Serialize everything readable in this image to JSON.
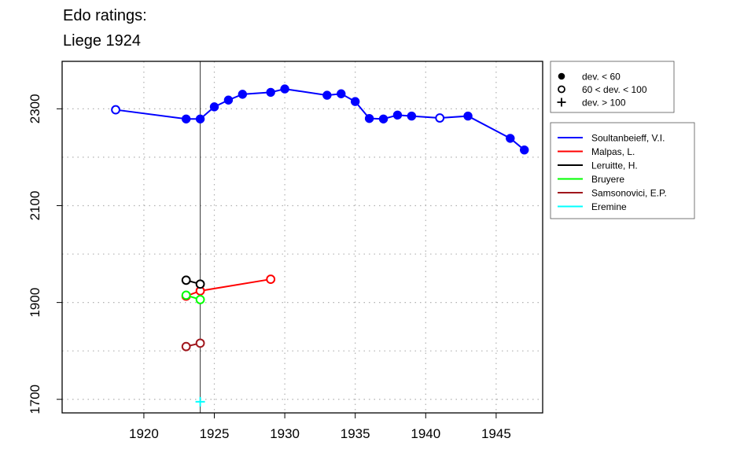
{
  "chart_data": {
    "type": "line",
    "title": "Edo ratings:",
    "subtitle": "Liege 1924",
    "xlabel": "",
    "ylabel": "",
    "xlim": [
      1914.2,
      1948.3
    ],
    "ylim": [
      1672,
      2398
    ],
    "x_ticks": [
      1920,
      1925,
      1930,
      1935,
      1940,
      1945
    ],
    "y_ticks": [
      1700,
      1900,
      2100,
      2300
    ],
    "x_grid": [
      1920,
      1925,
      1930,
      1935,
      1940,
      1945
    ],
    "y_grid": [
      1800,
      2000,
      2200,
      2400
    ],
    "grid": true,
    "marker_line_x": 1924,
    "dev_legend": [
      {
        "symbol": "filled-circle",
        "label": "dev. < 60"
      },
      {
        "symbol": "open-circle",
        "label": "60 < dev. < 100"
      },
      {
        "symbol": "plus",
        "label": "dev. > 100"
      }
    ],
    "legend_position": "right",
    "series": [
      {
        "name": "Soultanbeieff, V.I.",
        "color": "#0000ff",
        "points": [
          {
            "x": 1918,
            "y": 2298,
            "m": "open"
          },
          {
            "x": 1923,
            "y": 2279,
            "m": "filled"
          },
          {
            "x": 1924,
            "y": 2279,
            "m": "filled"
          },
          {
            "x": 1925,
            "y": 2304,
            "m": "filled"
          },
          {
            "x": 1926,
            "y": 2318,
            "m": "filled"
          },
          {
            "x": 1927,
            "y": 2330,
            "m": "filled"
          },
          {
            "x": 1929,
            "y": 2334,
            "m": "filled"
          },
          {
            "x": 1930,
            "y": 2341,
            "m": "filled"
          },
          {
            "x": 1933,
            "y": 2328,
            "m": "filled"
          },
          {
            "x": 1934,
            "y": 2331,
            "m": "filled"
          },
          {
            "x": 1935,
            "y": 2315,
            "m": "filled"
          },
          {
            "x": 1936,
            "y": 2280,
            "m": "filled"
          },
          {
            "x": 1937,
            "y": 2279,
            "m": "filled"
          },
          {
            "x": 1938,
            "y": 2287,
            "m": "filled"
          },
          {
            "x": 1939,
            "y": 2285,
            "m": "filled"
          },
          {
            "x": 1941,
            "y": 2281,
            "m": "open"
          },
          {
            "x": 1943,
            "y": 2285,
            "m": "filled"
          },
          {
            "x": 1946,
            "y": 2239,
            "m": "filled"
          },
          {
            "x": 1947,
            "y": 2215,
            "m": "filled"
          }
        ]
      },
      {
        "name": "Malpas, L.",
        "color": "#ff0000",
        "points": [
          {
            "x": 1923,
            "y": 1913,
            "m": "open"
          },
          {
            "x": 1924,
            "y": 1924,
            "m": "open"
          },
          {
            "x": 1929,
            "y": 1948,
            "m": "open"
          }
        ]
      },
      {
        "name": "Leruitte, H.",
        "color": "#000000",
        "points": [
          {
            "x": 1923,
            "y": 1946,
            "m": "open"
          },
          {
            "x": 1924,
            "y": 1938,
            "m": "open"
          }
        ]
      },
      {
        "name": "Bruyere",
        "color": "#00ff00",
        "points": [
          {
            "x": 1923,
            "y": 1915,
            "m": "open"
          },
          {
            "x": 1924,
            "y": 1906,
            "m": "open"
          }
        ]
      },
      {
        "name": "Samsonovici, E.P.",
        "color": "#a0161c",
        "points": [
          {
            "x": 1923,
            "y": 1809,
            "m": "open"
          },
          {
            "x": 1924,
            "y": 1816,
            "m": "open"
          }
        ]
      },
      {
        "name": "Eremine",
        "color": "#00ffff",
        "points": [
          {
            "x": 1924,
            "y": 1695,
            "m": "plus"
          }
        ]
      }
    ]
  }
}
